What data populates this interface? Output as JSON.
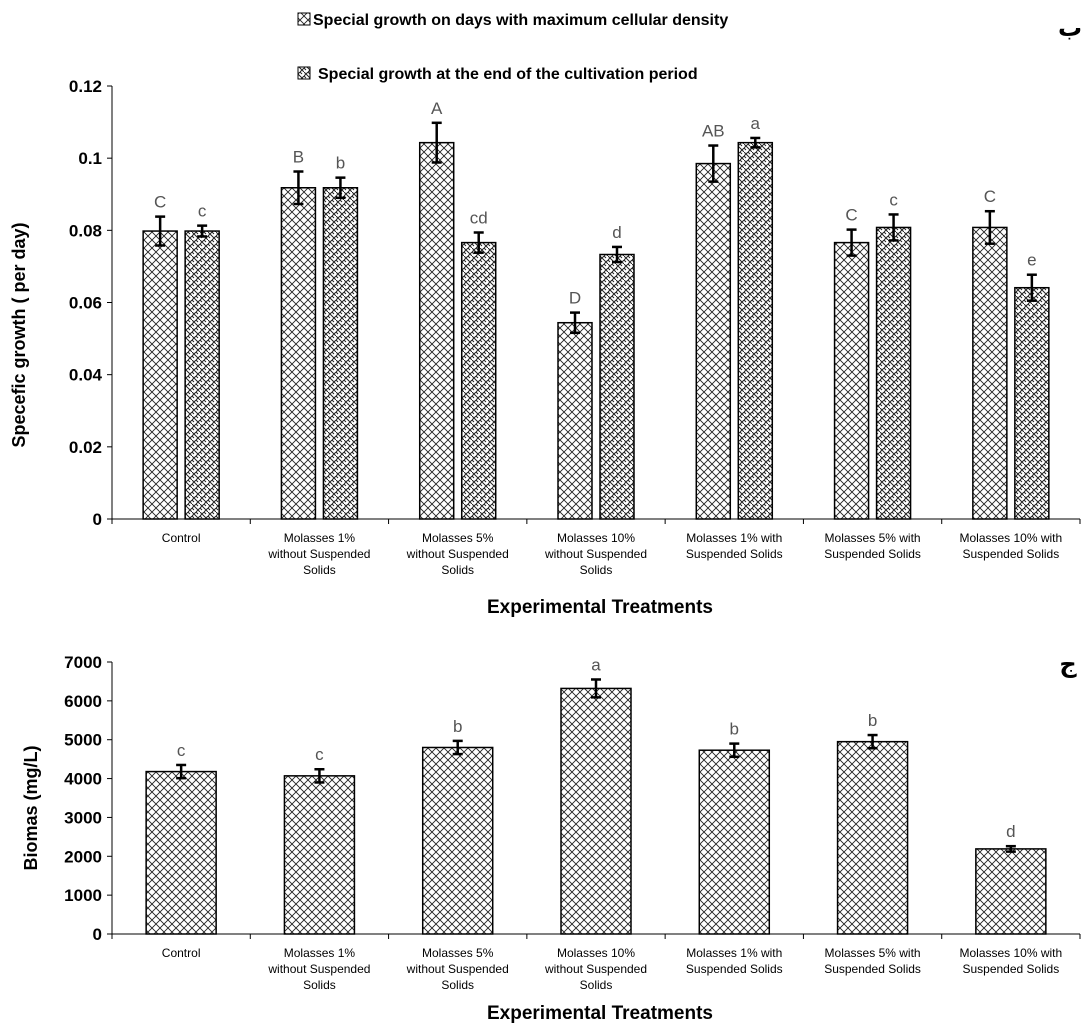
{
  "charts": [
    {
      "panel_mark": "ب",
      "chart_data": {
        "type": "bar",
        "title": "",
        "xlabel": "Experimental Treatments",
        "ylabel": "Specefic  growth ( per  day)",
        "ylim": [
          0,
          0.12
        ],
        "yticks": [
          "0",
          "0.02",
          "0.04",
          "0.06",
          "0.08",
          "0.1",
          "0.12"
        ],
        "ytick_values": [
          0,
          0.02,
          0.04,
          0.06,
          0.08,
          0.1,
          0.12
        ],
        "grid": false,
        "legend_position": "top",
        "categories": [
          [
            "Control"
          ],
          [
            "Molasses 1%",
            "without Suspended",
            "Solids"
          ],
          [
            "Molasses 5%",
            "without Suspended",
            "Solids"
          ],
          [
            "Molasses 10%",
            "without Suspended",
            "Solids"
          ],
          [
            "Molasses 1% with",
            "Suspended Solids"
          ],
          [
            "Molasses 5% with",
            "Suspended Solids"
          ],
          [
            "Molasses 10% with",
            "Suspended Solids"
          ]
        ],
        "series": [
          {
            "name": "Special growth on days with maximum cellular density",
            "pattern": "crosshatch",
            "values": [
              0.0798,
              0.0918,
              0.1043,
              0.0544,
              0.0985,
              0.0766,
              0.0808
            ],
            "errors": [
              0.004,
              0.0045,
              0.0055,
              0.0028,
              0.005,
              0.0036,
              0.0045
            ],
            "labels": [
              "C",
              "B",
              "A",
              "D",
              "AB",
              "C",
              "C"
            ]
          },
          {
            "name": "Special growth at the end of the cultivation period",
            "pattern": "weave",
            "values": [
              0.0798,
              0.0918,
              0.0766,
              0.0733,
              0.1043,
              0.0808,
              0.0641
            ],
            "errors": [
              0.0015,
              0.0028,
              0.0028,
              0.0021,
              0.0013,
              0.0036,
              0.0036
            ],
            "labels": [
              "c",
              "b",
              "cd",
              "d",
              "a",
              "c",
              "e"
            ]
          }
        ]
      }
    },
    {
      "panel_mark": "ج",
      "chart_data": {
        "type": "bar",
        "title": "",
        "xlabel": "Experimental Treatments",
        "ylabel": "Biomas (mg/L)",
        "ylim": [
          0,
          7000
        ],
        "yticks": [
          "0",
          "1000",
          "2000",
          "3000",
          "4000",
          "5000",
          "6000",
          "7000"
        ],
        "ytick_values": [
          0,
          1000,
          2000,
          3000,
          4000,
          5000,
          6000,
          7000
        ],
        "grid": false,
        "legend_position": "none",
        "categories": [
          [
            "Control"
          ],
          [
            "Molasses 1%",
            "without Suspended",
            "Solids"
          ],
          [
            "Molasses 5%",
            "without Suspended",
            "Solids"
          ],
          [
            "Molasses 10%",
            "without Suspended",
            "Solids"
          ],
          [
            "Molasses 1% with",
            "Suspended Solids"
          ],
          [
            "Molasses 5% with",
            "Suspended Solids"
          ],
          [
            "Molasses 10% with",
            "Suspended Solids"
          ]
        ],
        "series": [
          {
            "pattern": "crosshatch",
            "values": [
              4180,
              4070,
              4800,
              6320,
              4730,
              4950,
              2190
            ],
            "errors": [
              170,
              170,
              170,
              230,
              170,
              170,
              70
            ],
            "labels": [
              "c",
              "c",
              "b",
              "a",
              "b",
              "b",
              "d"
            ]
          }
        ]
      }
    }
  ]
}
